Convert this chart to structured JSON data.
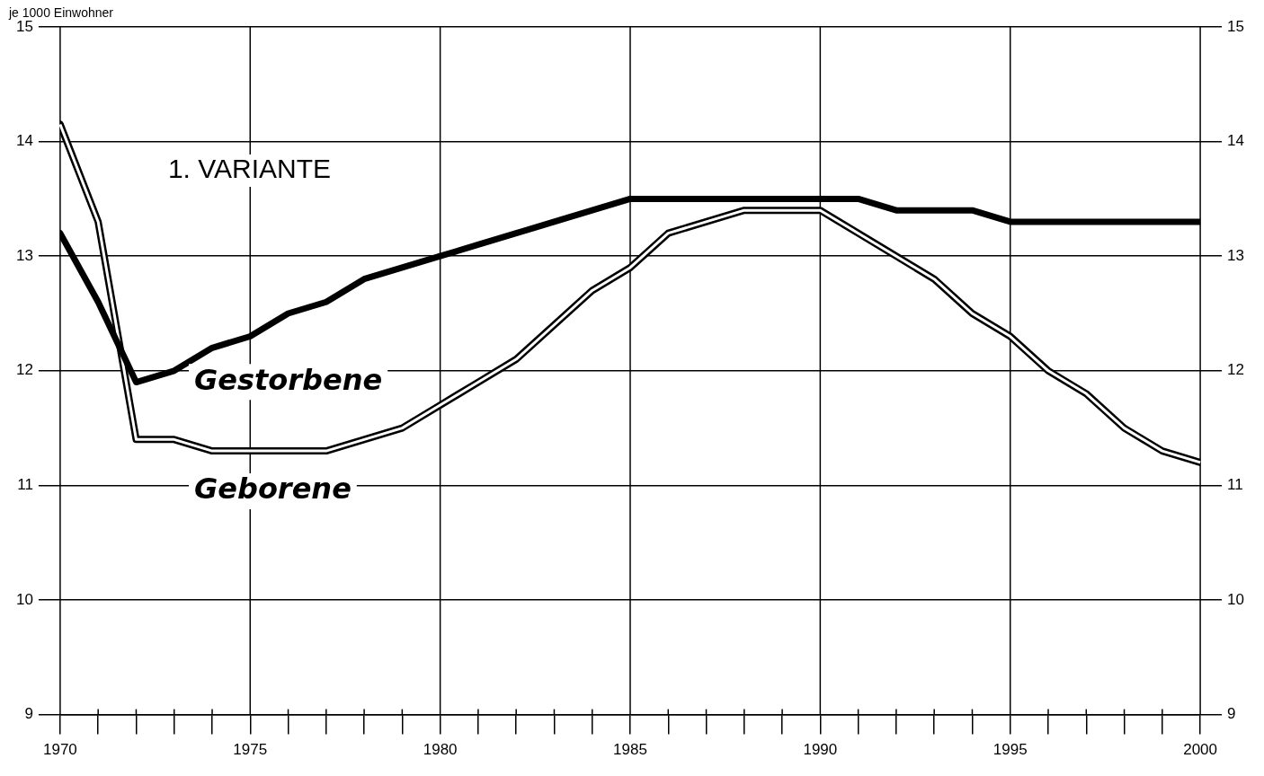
{
  "chart_data": {
    "type": "line",
    "ylabel": "je 1000 Einwohner",
    "annotations": [
      "1. VARIANTE"
    ],
    "x": [
      1970,
      1971,
      1972,
      1973,
      1974,
      1975,
      1976,
      1977,
      1978,
      1979,
      1980,
      1981,
      1982,
      1983,
      1984,
      1985,
      1986,
      1987,
      1988,
      1989,
      1990,
      1991,
      1992,
      1993,
      1994,
      1995,
      1996,
      1997,
      1998,
      1999,
      2000
    ],
    "series": [
      {
        "name": "Gestorbene",
        "color": "#000000",
        "values": [
          13.2,
          12.6,
          11.9,
          12.0,
          12.2,
          12.3,
          12.5,
          12.6,
          12.8,
          12.9,
          13.0,
          13.1,
          13.2,
          13.3,
          13.4,
          13.5,
          13.5,
          13.5,
          13.5,
          13.5,
          13.5,
          13.5,
          13.4,
          13.4,
          13.4,
          13.3,
          13.3,
          13.3,
          13.3,
          13.3,
          13.3
        ]
      },
      {
        "name": "Geborene",
        "color": "#000000",
        "values": [
          14.15,
          13.3,
          11.4,
          11.4,
          11.3,
          11.3,
          11.3,
          11.3,
          11.4,
          11.5,
          11.7,
          11.9,
          12.1,
          12.4,
          12.7,
          12.9,
          13.2,
          13.3,
          13.4,
          13.4,
          13.4,
          13.2,
          13.0,
          12.8,
          12.5,
          12.3,
          12.0,
          11.8,
          11.5,
          11.3,
          11.2
        ]
      }
    ],
    "xlim": [
      1970,
      2000
    ],
    "xticks": [
      1970,
      {
        "value": 1971,
        "label": null
      },
      {
        "value": 1972,
        "label": null
      },
      {
        "value": 1973,
        "label": null
      },
      {
        "value": 1974,
        "label": null
      },
      1975,
      {
        "value": 1976,
        "label": null
      },
      {
        "value": 1977,
        "label": null
      },
      {
        "value": 1978,
        "label": null
      },
      {
        "value": 1979,
        "label": null
      },
      1980,
      {
        "value": 1981,
        "label": null
      },
      {
        "value": 1982,
        "label": null
      },
      {
        "value": 1983,
        "label": null
      },
      {
        "value": 1984,
        "label": null
      },
      1985,
      {
        "value": 1986,
        "label": null
      },
      {
        "value": 1987,
        "label": null
      },
      {
        "value": 1988,
        "label": null
      },
      {
        "value": 1989,
        "label": null
      },
      1990,
      {
        "value": 1991,
        "label": null
      },
      {
        "value": 1992,
        "label": null
      },
      {
        "value": 1993,
        "label": null
      },
      {
        "value": 1994,
        "label": null
      },
      1995,
      {
        "value": 1996,
        "label": null
      },
      {
        "value": 1997,
        "label": null
      },
      {
        "value": 1998,
        "label": null
      },
      {
        "value": 1999,
        "label": null
      },
      2000
    ],
    "ylim": [
      9,
      15
    ],
    "yticks": [
      9,
      10,
      11,
      12,
      13,
      14,
      15
    ],
    "y2lim": [
      9,
      15
    ],
    "y2ticks": [
      9,
      10,
      11,
      12,
      13,
      14,
      15
    ],
    "grid": true,
    "legend": false,
    "marker": "none",
    "line_style": "solid"
  }
}
